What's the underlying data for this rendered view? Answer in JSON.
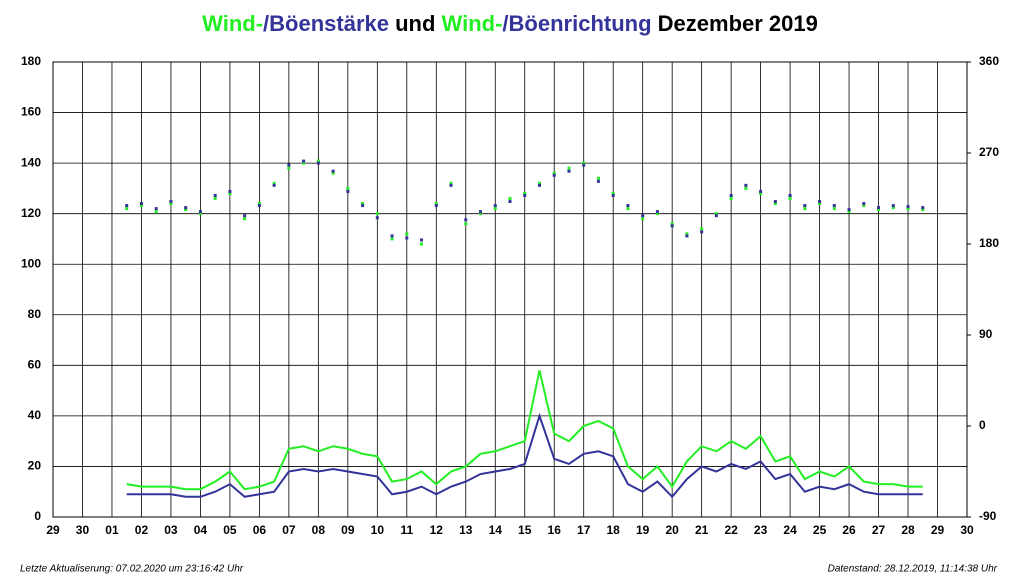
{
  "chart_data": {
    "type": "wind",
    "title_parts": [
      {
        "text": "Wind-",
        "color": "#22ee22"
      },
      {
        "text": "/Böenstärke",
        "color": "#333399"
      },
      {
        "text": " und ",
        "color": "#000000"
      },
      {
        "text": "Wind-",
        "color": "#22ee22"
      },
      {
        "text": "/Böenrichtung",
        "color": "#333399"
      },
      {
        "text": " Dezember 2019",
        "color": "#000000"
      }
    ],
    "footer_left": "Letzte Aktualiserung: 07.02.2020 um 23:16:42 Uhr",
    "footer_right": "Datenstand: 28.12.2019, 11:14:38 Uhr",
    "xlim": [
      0,
      31
    ],
    "xticks": [
      {
        "value": 0,
        "label": "29"
      },
      {
        "value": 1,
        "label": "30"
      },
      {
        "value": 2,
        "label": "01"
      },
      {
        "value": 3,
        "label": "02"
      },
      {
        "value": 4,
        "label": "03"
      },
      {
        "value": 5,
        "label": "04"
      },
      {
        "value": 6,
        "label": "05"
      },
      {
        "value": 7,
        "label": "06"
      },
      {
        "value": 8,
        "label": "07"
      },
      {
        "value": 9,
        "label": "08"
      },
      {
        "value": 10,
        "label": "09"
      },
      {
        "value": 11,
        "label": "10"
      },
      {
        "value": 12,
        "label": "11"
      },
      {
        "value": 13,
        "label": "12"
      },
      {
        "value": 14,
        "label": "13"
      },
      {
        "value": 15,
        "label": "14"
      },
      {
        "value": 16,
        "label": "15"
      },
      {
        "value": 17,
        "label": "16"
      },
      {
        "value": 18,
        "label": "17"
      },
      {
        "value": 19,
        "label": "18"
      },
      {
        "value": 20,
        "label": "19"
      },
      {
        "value": 21,
        "label": "20"
      },
      {
        "value": 22,
        "label": "21"
      },
      {
        "value": 23,
        "label": "22"
      },
      {
        "value": 24,
        "label": "23"
      },
      {
        "value": 25,
        "label": "24"
      },
      {
        "value": 26,
        "label": "25"
      },
      {
        "value": 27,
        "label": "26"
      },
      {
        "value": 28,
        "label": "27"
      },
      {
        "value": 29,
        "label": "28"
      },
      {
        "value": 30,
        "label": "29"
      },
      {
        "value": 31,
        "label": "30"
      }
    ],
    "ylim": [
      0,
      180
    ],
    "yticks": [
      0,
      20,
      40,
      60,
      80,
      100,
      120,
      140,
      160,
      180
    ],
    "y2lim": [
      -90,
      360
    ],
    "y2ticks": [
      -90,
      0,
      90,
      180,
      270,
      360
    ],
    "grid": true,
    "x": [
      2.5,
      3,
      3.5,
      4,
      4.5,
      5,
      5.5,
      6,
      6.5,
      7,
      7.5,
      8,
      8.5,
      9,
      9.5,
      10,
      10.5,
      11,
      11.5,
      12,
      12.5,
      13,
      13.5,
      14,
      14.5,
      15,
      15.5,
      16,
      16.5,
      17,
      17.5,
      18,
      18.5,
      19,
      19.5,
      20,
      20.5,
      21,
      21.5,
      22,
      22.5,
      23,
      23.5,
      24,
      24.5,
      25,
      25.5,
      26,
      26.5,
      27,
      27.5,
      28,
      28.5,
      29,
      29.5
    ],
    "series": [
      {
        "color": "#22ee22",
        "kind": "line",
        "values": [
          13,
          12,
          12,
          12,
          11,
          11,
          14,
          18,
          11,
          12,
          14,
          27,
          28,
          26,
          28,
          27,
          25,
          24,
          14,
          15,
          18,
          13,
          18,
          20,
          25,
          26,
          28,
          30,
          58,
          33,
          30,
          36,
          38,
          35,
          20,
          15,
          20,
          12,
          22,
          28,
          26,
          30,
          27,
          32,
          22,
          24,
          15,
          18,
          16,
          20,
          14,
          13,
          13,
          12,
          12
        ]
      },
      {
        "color": "#333399",
        "kind": "line",
        "values": [
          9,
          9,
          9,
          9,
          8,
          8,
          10,
          13,
          8,
          9,
          10,
          18,
          19,
          18,
          19,
          18,
          17,
          16,
          9,
          10,
          12,
          9,
          12,
          14,
          17,
          18,
          19,
          21,
          40,
          23,
          21,
          25,
          26,
          24,
          13,
          10,
          14,
          8,
          15,
          20,
          18,
          21,
          19,
          22,
          15,
          17,
          10,
          12,
          11,
          13,
          10,
          9,
          9,
          9,
          9
        ]
      },
      {
        "color": "#22ee22",
        "kind": "dots",
        "axis": "y2",
        "values": [
          215,
          218,
          212,
          220,
          214,
          210,
          225,
          230,
          205,
          220,
          240,
          255,
          260,
          262,
          250,
          235,
          220,
          210,
          185,
          190,
          180,
          220,
          240,
          200,
          210,
          215,
          225,
          230,
          240,
          250,
          255,
          260,
          245,
          230,
          215,
          205,
          210,
          200,
          190,
          195,
          210,
          225,
          235,
          230,
          220,
          225,
          215,
          220,
          215,
          212,
          218,
          214,
          216,
          215,
          214
        ]
      },
      {
        "color": "#333399",
        "kind": "dots",
        "axis": "y2",
        "values": [
          218,
          220,
          215,
          222,
          216,
          212,
          228,
          232,
          208,
          218,
          238,
          258,
          262,
          260,
          252,
          232,
          218,
          206,
          188,
          186,
          184,
          218,
          238,
          204,
          212,
          218,
          222,
          228,
          238,
          248,
          252,
          258,
          242,
          228,
          218,
          208,
          212,
          198,
          188,
          192,
          208,
          228,
          238,
          232,
          222,
          228,
          218,
          222,
          218,
          214,
          220,
          216,
          218,
          217,
          216
        ]
      }
    ]
  }
}
